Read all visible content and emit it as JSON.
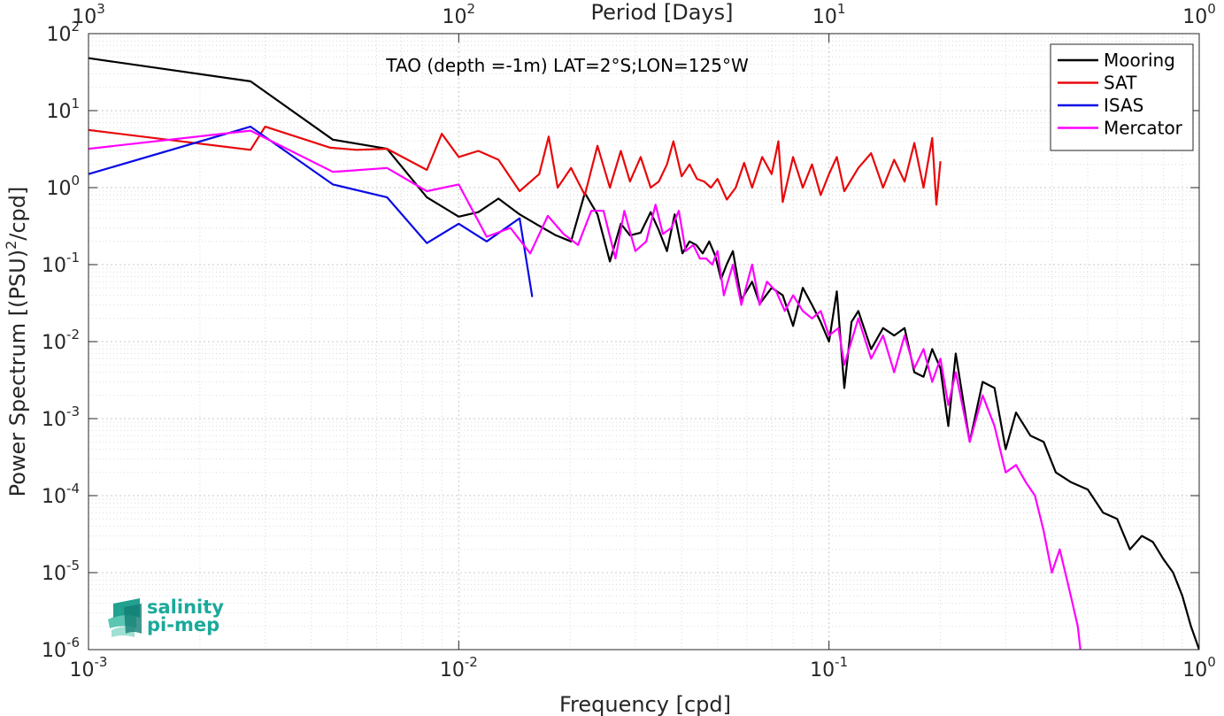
{
  "chart_data": {
    "type": "line",
    "title": "",
    "annotation": "TAO (depth =-1m) LAT=2°S;LON=125°W",
    "xlabel": "Frequency [cpd]",
    "ylabel": "Power Spectrum [(PSU)²/cpd]",
    "x2label": "Period [Days]",
    "x_scale": "log",
    "y_scale": "log",
    "xlim": [
      0.001,
      1
    ],
    "ylim": [
      1e-06,
      100
    ],
    "grid": true,
    "legend_position": "top-right",
    "x_ticks": [
      {
        "v": 0.001,
        "base": "10",
        "exp": "-3"
      },
      {
        "v": 0.01,
        "base": "10",
        "exp": "-2"
      },
      {
        "v": 0.1,
        "base": "10",
        "exp": "-1"
      },
      {
        "v": 1,
        "base": "10",
        "exp": "0"
      }
    ],
    "y_ticks": [
      {
        "v": 100,
        "base": "10",
        "exp": "2"
      },
      {
        "v": 10,
        "base": "10",
        "exp": "1"
      },
      {
        "v": 1,
        "base": "10",
        "exp": "0"
      },
      {
        "v": 0.1,
        "base": "10",
        "exp": "-1"
      },
      {
        "v": 0.01,
        "base": "10",
        "exp": "-2"
      },
      {
        "v": 0.001,
        "base": "10",
        "exp": "-3"
      },
      {
        "v": 0.0001,
        "base": "10",
        "exp": "-4"
      },
      {
        "v": 1e-05,
        "base": "10",
        "exp": "-5"
      },
      {
        "v": 1e-06,
        "base": "10",
        "exp": "-6"
      }
    ],
    "top_ticks": [
      {
        "v": 0.001,
        "base": "10",
        "exp": "3"
      },
      {
        "v": 0.01,
        "base": "10",
        "exp": "2"
      },
      {
        "v": 0.1,
        "base": "10",
        "exp": "1"
      },
      {
        "v": 1,
        "base": "10",
        "exp": "0"
      }
    ],
    "series": [
      {
        "name": "Mooring",
        "color": "#000000",
        "x": [
          0.001,
          0.00274,
          0.00457,
          0.0064,
          0.0082,
          0.01,
          0.0113,
          0.0128,
          0.0146,
          0.0163,
          0.0183,
          0.0201,
          0.0219,
          0.0237,
          0.0256,
          0.0274,
          0.029,
          0.031,
          0.033,
          0.0347,
          0.0365,
          0.0383,
          0.0402,
          0.042,
          0.0438,
          0.0456,
          0.0475,
          0.0493,
          0.0511,
          0.0529,
          0.055,
          0.058,
          0.062,
          0.065,
          0.07,
          0.075,
          0.08,
          0.085,
          0.09,
          0.095,
          0.1,
          0.105,
          0.11,
          0.115,
          0.12,
          0.13,
          0.14,
          0.15,
          0.16,
          0.17,
          0.18,
          0.19,
          0.2,
          0.21,
          0.22,
          0.24,
          0.26,
          0.28,
          0.3,
          0.32,
          0.35,
          0.38,
          0.41,
          0.45,
          0.5,
          0.55,
          0.6,
          0.65,
          0.7,
          0.75,
          0.8,
          0.85,
          0.9,
          0.95,
          1.0
        ],
        "y": [
          48,
          24,
          4.2,
          3.2,
          0.75,
          0.42,
          0.48,
          0.72,
          0.45,
          0.33,
          0.24,
          0.2,
          0.85,
          0.45,
          0.11,
          0.34,
          0.24,
          0.26,
          0.48,
          0.28,
          0.15,
          0.45,
          0.14,
          0.2,
          0.18,
          0.14,
          0.2,
          0.13,
          0.065,
          0.1,
          0.15,
          0.035,
          0.06,
          0.031,
          0.05,
          0.04,
          0.016,
          0.05,
          0.03,
          0.018,
          0.01,
          0.045,
          0.0025,
          0.018,
          0.025,
          0.008,
          0.015,
          0.012,
          0.015,
          0.004,
          0.0035,
          0.008,
          0.0045,
          0.0008,
          0.007,
          0.0005,
          0.003,
          0.0025,
          0.0004,
          0.0012,
          0.0006,
          0.0005,
          0.0002,
          0.00015,
          0.00012,
          6e-05,
          5e-05,
          2e-05,
          3e-05,
          2.5e-05,
          1.5e-05,
          1e-05,
          5e-06,
          2e-06,
          1e-06
        ]
      },
      {
        "name": "SAT",
        "color": "#e8080b",
        "x": [
          0.001,
          0.00274,
          0.003,
          0.0045,
          0.0053,
          0.0064,
          0.0082,
          0.009,
          0.01,
          0.0113,
          0.0128,
          0.0146,
          0.0165,
          0.0175,
          0.0185,
          0.0201,
          0.0219,
          0.0237,
          0.0256,
          0.0274,
          0.029,
          0.031,
          0.033,
          0.0347,
          0.0365,
          0.038,
          0.04,
          0.042,
          0.044,
          0.046,
          0.048,
          0.05,
          0.053,
          0.056,
          0.059,
          0.062,
          0.066,
          0.07,
          0.073,
          0.075,
          0.08,
          0.085,
          0.09,
          0.095,
          0.1,
          0.105,
          0.11,
          0.12,
          0.13,
          0.14,
          0.15,
          0.16,
          0.17,
          0.18,
          0.19,
          0.195,
          0.2
        ],
        "y": [
          5.6,
          3.1,
          6.2,
          3.3,
          3.1,
          3.2,
          1.7,
          5.0,
          2.5,
          3.0,
          2.3,
          0.9,
          1.5,
          4.6,
          1.0,
          1.8,
          0.8,
          3.5,
          1.0,
          3.0,
          1.2,
          2.5,
          1.0,
          1.2,
          2.0,
          4.0,
          1.4,
          2.0,
          1.3,
          1.2,
          1.0,
          1.3,
          0.7,
          1.0,
          2.1,
          1.0,
          2.5,
          1.5,
          4.0,
          0.65,
          2.5,
          1.0,
          2.0,
          0.8,
          1.5,
          2.5,
          0.9,
          1.8,
          2.8,
          1.0,
          2.3,
          1.2,
          3.8,
          1.0,
          4.4,
          0.6,
          2.2
        ]
      },
      {
        "name": "ISAS",
        "color": "#0a0ae6",
        "x": [
          0.001,
          0.00274,
          0.00457,
          0.0064,
          0.0082,
          0.01,
          0.0119,
          0.0146,
          0.0158
        ],
        "y": [
          1.5,
          6.2,
          1.1,
          0.75,
          0.19,
          0.34,
          0.2,
          0.4,
          0.038
        ]
      },
      {
        "name": "Mercator",
        "color": "#ff00ff",
        "x": [
          0.001,
          0.00274,
          0.00457,
          0.0064,
          0.0082,
          0.01,
          0.0119,
          0.0138,
          0.0156,
          0.0174,
          0.0192,
          0.021,
          0.0228,
          0.0246,
          0.0265,
          0.028,
          0.03,
          0.0321,
          0.034,
          0.0356,
          0.0375,
          0.0393,
          0.041,
          0.043,
          0.0448,
          0.0466,
          0.0484,
          0.05,
          0.052,
          0.055,
          0.058,
          0.062,
          0.065,
          0.068,
          0.072,
          0.076,
          0.08,
          0.085,
          0.09,
          0.095,
          0.1,
          0.106,
          0.11,
          0.12,
          0.13,
          0.14,
          0.15,
          0.16,
          0.17,
          0.18,
          0.19,
          0.2,
          0.21,
          0.22,
          0.24,
          0.26,
          0.28,
          0.3,
          0.32,
          0.34,
          0.36,
          0.38,
          0.4,
          0.42,
          0.45,
          0.47,
          0.48
        ],
        "y": [
          3.2,
          5.5,
          1.6,
          1.8,
          0.9,
          1.1,
          0.23,
          0.3,
          0.14,
          0.43,
          0.25,
          0.18,
          0.5,
          0.5,
          0.12,
          0.5,
          0.15,
          0.2,
          0.6,
          0.25,
          0.3,
          0.5,
          0.15,
          0.18,
          0.12,
          0.12,
          0.1,
          0.15,
          0.04,
          0.1,
          0.03,
          0.1,
          0.03,
          0.06,
          0.045,
          0.025,
          0.04,
          0.025,
          0.02,
          0.025,
          0.012,
          0.015,
          0.005,
          0.02,
          0.006,
          0.012,
          0.004,
          0.012,
          0.0045,
          0.008,
          0.003,
          0.006,
          0.0015,
          0.004,
          0.0005,
          0.002,
          0.0008,
          0.0002,
          0.00025,
          0.00015,
          0.0001,
          3.5e-05,
          1e-05,
          2e-05,
          5e-06,
          2e-06,
          8e-07
        ]
      }
    ]
  },
  "logo": {
    "line1": "salinity",
    "line2": "pi-mep"
  }
}
